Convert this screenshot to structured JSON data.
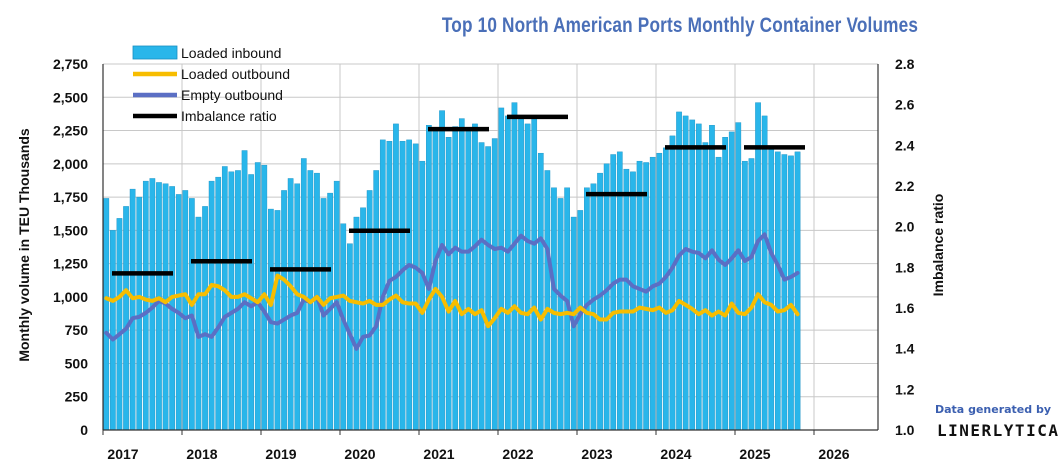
{
  "chart_data": {
    "type": "bar",
    "title": "Top 10 North American Ports Monthly Container Volumes",
    "ylabel": "Monthly volume in TEU Thousands",
    "y2label": "Imbalance ratio",
    "ylim": [
      0,
      2750
    ],
    "y2lim": [
      1.0,
      2.8
    ],
    "yticks": [
      "0",
      "250",
      "500",
      "750",
      "1,000",
      "1,250",
      "1,500",
      "1,750",
      "2,000",
      "2,250",
      "2,500",
      "2,750"
    ],
    "y2ticks": [
      "1.0",
      "1.2",
      "1.4",
      "1.6",
      "1.8",
      "2.0",
      "2.2",
      "2.4",
      "2.6",
      "2.8"
    ],
    "xticks": [
      "2017",
      "2018",
      "2019",
      "2020",
      "2021",
      "2022",
      "2023",
      "2024",
      "2025",
      "2026"
    ],
    "x_start": "2017-01",
    "grid": true,
    "legend_position": "top-left",
    "colors": {
      "loaded_inbound": "#29b6ea",
      "loaded_inbound_edge": "#1a8fc2",
      "loaded_outbound": "#f7bd00",
      "empty_outbound": "#5b6fc4",
      "imbalance_ratio": "#000000",
      "title": "#4a6fb8"
    },
    "series": [
      {
        "name": "Loaded inbound",
        "kind": "bar",
        "values": [
          1740,
          1500,
          1590,
          1680,
          1810,
          1750,
          1870,
          1890,
          1860,
          1850,
          1830,
          1770,
          1800,
          1740,
          1600,
          1680,
          1870,
          1900,
          1980,
          1940,
          1950,
          2100,
          1920,
          2010,
          1990,
          1660,
          1650,
          1800,
          1890,
          1850,
          2040,
          1950,
          1930,
          1740,
          1780,
          1870,
          1550,
          1400,
          1600,
          1670,
          1800,
          1950,
          2180,
          2170,
          2300,
          2170,
          2180,
          2150,
          2020,
          2290,
          2250,
          2400,
          2200,
          2280,
          2340,
          2270,
          2300,
          2160,
          2130,
          2190,
          2420,
          2360,
          2460,
          2360,
          2300,
          2360,
          2080,
          1950,
          1820,
          1740,
          1820,
          1600,
          1650,
          1820,
          1850,
          1930,
          2000,
          2070,
          2090,
          1960,
          1940,
          2020,
          2010,
          2050,
          2080,
          2120,
          2210,
          2390,
          2360,
          2330,
          2300,
          2160,
          2290,
          2050,
          2200,
          2240,
          2310,
          2020,
          2040,
          2460,
          2360,
          2120,
          2090,
          2070,
          2060,
          2090
        ]
      },
      {
        "name": "Loaded outbound",
        "kind": "line",
        "values": [
          990,
          970,
          1000,
          1050,
          990,
          1000,
          980,
          970,
          990,
          960,
          1000,
          1010,
          1020,
          940,
          1020,
          1020,
          1090,
          1080,
          1050,
          1000,
          1000,
          1020,
          990,
          960,
          1020,
          940,
          1160,
          1130,
          1080,
          1020,
          1000,
          960,
          1000,
          940,
          990,
          1000,
          1010,
          970,
          960,
          950,
          970,
          940,
          940,
          980,
          1010,
          960,
          950,
          950,
          880,
          980,
          1060,
          1000,
          890,
          970,
          870,
          910,
          870,
          900,
          780,
          840,
          910,
          880,
          930,
          880,
          870,
          920,
          830,
          910,
          880,
          870,
          880,
          870,
          920,
          880,
          870,
          830,
          830,
          880,
          890,
          890,
          890,
          920,
          910,
          900,
          920,
          880,
          900,
          970,
          940,
          910,
          870,
          900,
          860,
          890,
          860,
          950,
          880,
          870,
          920,
          1020,
          960,
          940,
          890,
          900,
          940,
          870
        ]
      },
      {
        "name": "Empty outbound",
        "kind": "line",
        "values": [
          730,
          680,
          720,
          760,
          840,
          850,
          880,
          920,
          970,
          950,
          910,
          880,
          840,
          860,
          700,
          720,
          700,
          770,
          850,
          880,
          910,
          960,
          930,
          960,
          890,
          810,
          800,
          830,
          860,
          880,
          980,
          960,
          1000,
          860,
          910,
          960,
          830,
          720,
          610,
          700,
          710,
          780,
          1000,
          1120,
          1150,
          1200,
          1240,
          1220,
          1180,
          1060,
          1270,
          1390,
          1320,
          1370,
          1340,
          1340,
          1380,
          1430,
          1390,
          1360,
          1370,
          1340,
          1400,
          1460,
          1420,
          1400,
          1440,
          1360,
          1060,
          1010,
          970,
          780,
          870,
          940,
          980,
          1010,
          1050,
          1100,
          1130,
          1130,
          1080,
          1060,
          1040,
          1080,
          1100,
          1150,
          1220,
          1310,
          1360,
          1340,
          1330,
          1290,
          1350,
          1280,
          1240,
          1290,
          1350,
          1270,
          1300,
          1420,
          1470,
          1330,
          1240,
          1130,
          1150,
          1180
        ]
      },
      {
        "name": "Imbalance ratio",
        "kind": "step",
        "axis": "right",
        "segments": [
          {
            "year": "2017",
            "value": 1.77
          },
          {
            "year": "2018",
            "value": 1.83
          },
          {
            "year": "2019",
            "value": 1.79
          },
          {
            "year": "2020",
            "value": 1.98
          },
          {
            "year": "2021",
            "value": 2.48
          },
          {
            "year": "2022",
            "value": 2.54
          },
          {
            "year": "2023",
            "value": 2.16
          },
          {
            "year": "2024",
            "value": 2.39
          },
          {
            "year": "2025",
            "value": 2.39
          }
        ]
      }
    ]
  },
  "credit": {
    "line1": "Data generated by",
    "line2": "LINERLYTICA"
  }
}
